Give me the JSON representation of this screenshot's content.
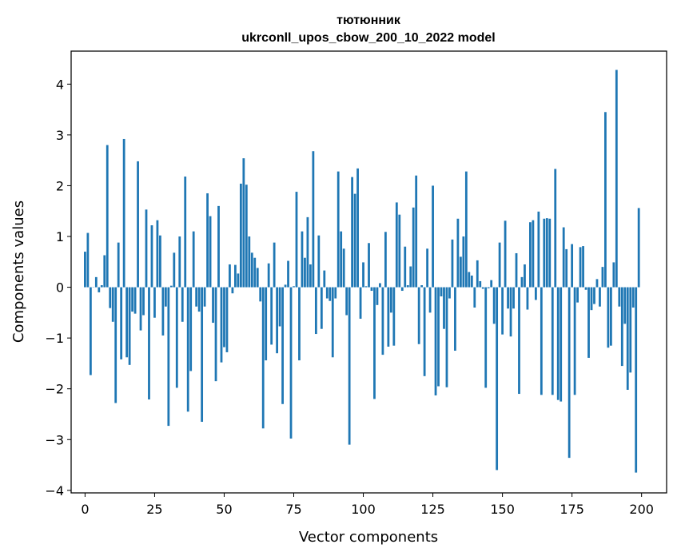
{
  "chart_data": {
    "type": "bar",
    "title": "тютюнник",
    "subtitle": "ukrconll_upos_cbow_200_10_2022 model",
    "xlabel": "Vector components",
    "ylabel": "Components values",
    "xlim": [
      -5,
      209
    ],
    "ylim": [
      -4.05,
      4.65
    ],
    "xticks": [
      0,
      25,
      50,
      75,
      100,
      125,
      150,
      175,
      200
    ],
    "yticks": [
      -4,
      -3,
      -2,
      -1,
      0,
      1,
      2,
      3,
      4
    ],
    "ytick_labels": [
      "−4",
      "−3",
      "−2",
      "−1",
      "0",
      "1",
      "2",
      "3",
      "4"
    ],
    "bar_color": "#1f77b4",
    "grid": false,
    "x": [
      0,
      1,
      2,
      3,
      4,
      5,
      6,
      7,
      8,
      9,
      10,
      11,
      12,
      13,
      14,
      15,
      16,
      17,
      18,
      19,
      20,
      21,
      22,
      23,
      24,
      25,
      26,
      27,
      28,
      29,
      30,
      31,
      32,
      33,
      34,
      35,
      36,
      37,
      38,
      39,
      40,
      41,
      42,
      43,
      44,
      45,
      46,
      47,
      48,
      49,
      50,
      51,
      52,
      53,
      54,
      55,
      56,
      57,
      58,
      59,
      60,
      61,
      62,
      63,
      64,
      65,
      66,
      67,
      68,
      69,
      70,
      71,
      72,
      73,
      74,
      75,
      76,
      77,
      78,
      79,
      80,
      81,
      82,
      83,
      84,
      85,
      86,
      87,
      88,
      89,
      90,
      91,
      92,
      93,
      94,
      95,
      96,
      97,
      98,
      99,
      100,
      101,
      102,
      103,
      104,
      105,
      106,
      107,
      108,
      109,
      110,
      111,
      112,
      113,
      114,
      115,
      116,
      117,
      118,
      119,
      120,
      121,
      122,
      123,
      124,
      125,
      126,
      127,
      128,
      129,
      130,
      131,
      132,
      133,
      134,
      135,
      136,
      137,
      138,
      139,
      140,
      141,
      142,
      143,
      144,
      145,
      146,
      147,
      148,
      149,
      150,
      151,
      152,
      153,
      154,
      155,
      156,
      157,
      158,
      159,
      160,
      161,
      162,
      163,
      164,
      165,
      166,
      167,
      168,
      169,
      170,
      171,
      172,
      173,
      174,
      175,
      176,
      177,
      178,
      179,
      180,
      181,
      182,
      183,
      184,
      185,
      186,
      187,
      188,
      189,
      190,
      191,
      192,
      193,
      194,
      195,
      196,
      197,
      198,
      199
    ],
    "values": [
      0.7,
      1.07,
      -1.73,
      0.0,
      0.2,
      -0.1,
      0.04,
      0.63,
      2.8,
      -0.41,
      -0.68,
      -2.28,
      0.88,
      -1.42,
      2.92,
      -1.38,
      -1.53,
      -0.48,
      -0.52,
      2.48,
      -0.85,
      -0.55,
      1.53,
      -2.21,
      1.22,
      -0.6,
      1.32,
      1.02,
      -0.95,
      -0.38,
      -2.73,
      0.03,
      0.68,
      -1.98,
      1.0,
      -0.68,
      2.18,
      -2.45,
      -1.65,
      1.1,
      -0.38,
      -0.48,
      -2.65,
      -0.38,
      1.85,
      1.4,
      -0.7,
      -1.85,
      1.6,
      -1.48,
      -1.18,
      -1.28,
      0.45,
      -0.12,
      0.44,
      0.27,
      2.04,
      2.54,
      2.02,
      1.0,
      0.68,
      0.58,
      0.38,
      -0.28,
      -2.78,
      -1.44,
      0.47,
      -1.13,
      0.88,
      -1.3,
      -0.77,
      -2.3,
      0.05,
      0.52,
      -2.98,
      0.02,
      1.88,
      -1.44,
      1.1,
      0.58,
      1.38,
      0.45,
      2.68,
      -0.92,
      1.02,
      -0.82,
      0.33,
      -0.22,
      -0.27,
      -1.38,
      -0.22,
      2.28,
      1.1,
      0.76,
      -0.55,
      -3.1,
      2.17,
      1.84,
      2.34,
      -0.62,
      0.49,
      0.02,
      0.87,
      -0.07,
      -2.2,
      -0.35,
      0.08,
      -1.33,
      1.09,
      -1.17,
      -0.5,
      -1.15,
      1.67,
      1.43,
      -0.07,
      0.8,
      0.04,
      0.41,
      1.57,
      2.2,
      -1.12,
      0.04,
      -1.75,
      0.76,
      -0.5,
      2.0,
      -2.13,
      -1.95,
      -0.18,
      -0.82,
      -1.97,
      -0.22,
      0.94,
      -1.25,
      1.35,
      0.6,
      1.0,
      2.28,
      0.3,
      0.23,
      -0.4,
      0.53,
      0.12,
      -0.03,
      -1.98,
      -0.02,
      0.14,
      -0.72,
      -3.6,
      0.88,
      -0.93,
      1.31,
      -0.42,
      -0.97,
      -0.42,
      0.67,
      -2.1,
      0.2,
      0.45,
      -0.44,
      1.28,
      1.32,
      -0.25,
      1.49,
      -2.12,
      1.35,
      1.36,
      1.35,
      -2.12,
      2.33,
      -2.22,
      -2.25,
      1.18,
      0.75,
      -3.36,
      0.85,
      -2.12,
      -0.3,
      0.79,
      0.81,
      -0.05,
      -1.39,
      -0.45,
      -0.33,
      0.16,
      -0.38,
      0.4,
      3.45,
      -1.19,
      -1.15,
      0.49,
      4.28,
      -0.38,
      -1.55,
      -0.72,
      -2.02,
      -1.68,
      -0.4,
      -3.65,
      1.56
    ]
  }
}
